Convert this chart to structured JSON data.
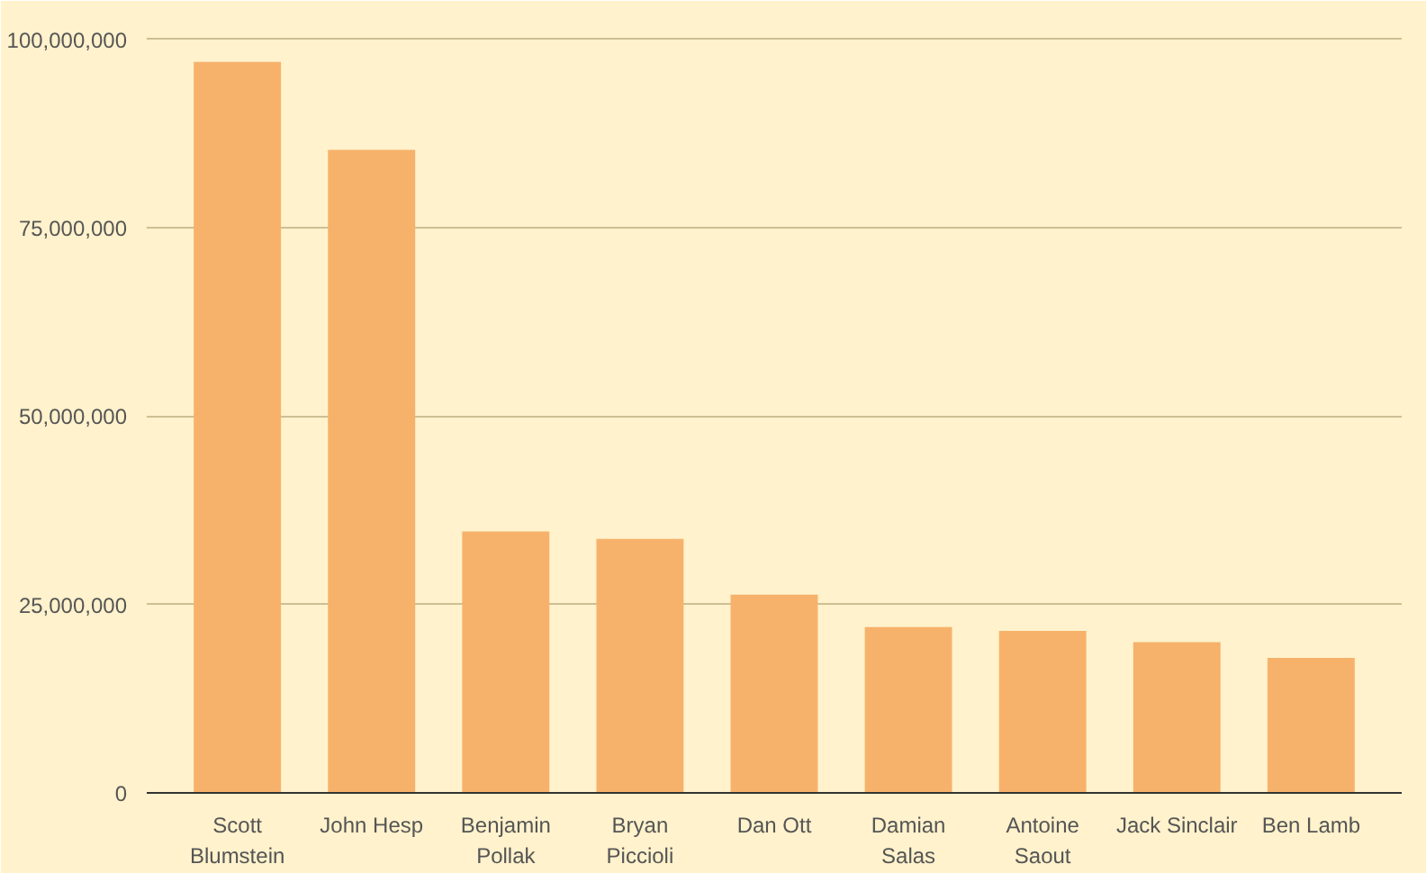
{
  "chart_data": {
    "type": "bar",
    "categories": [
      "Scott Blumstein",
      "John Hesp",
      "Benjamin Pollak",
      "Bryan Piccioli",
      "Dan Ott",
      "Damian Salas",
      "Antoine Saout",
      "Jack Sinclair",
      "Ben Lamb"
    ],
    "values": [
      97000000,
      85300000,
      34700000,
      33700000,
      26300000,
      22000000,
      21500000,
      20000000,
      17900000
    ],
    "color": "#f6b26b",
    "ylim": [
      0,
      100000000
    ],
    "yticks": [
      {
        "value": 0,
        "label": "0"
      },
      {
        "value": 25000000,
        "label": "25,000,000"
      },
      {
        "value": 50000000,
        "label": "50,000,000"
      },
      {
        "value": 75000000,
        "label": "75,000,000"
      },
      {
        "value": 100000000,
        "label": "100,000,000"
      }
    ],
    "grid": "y"
  }
}
